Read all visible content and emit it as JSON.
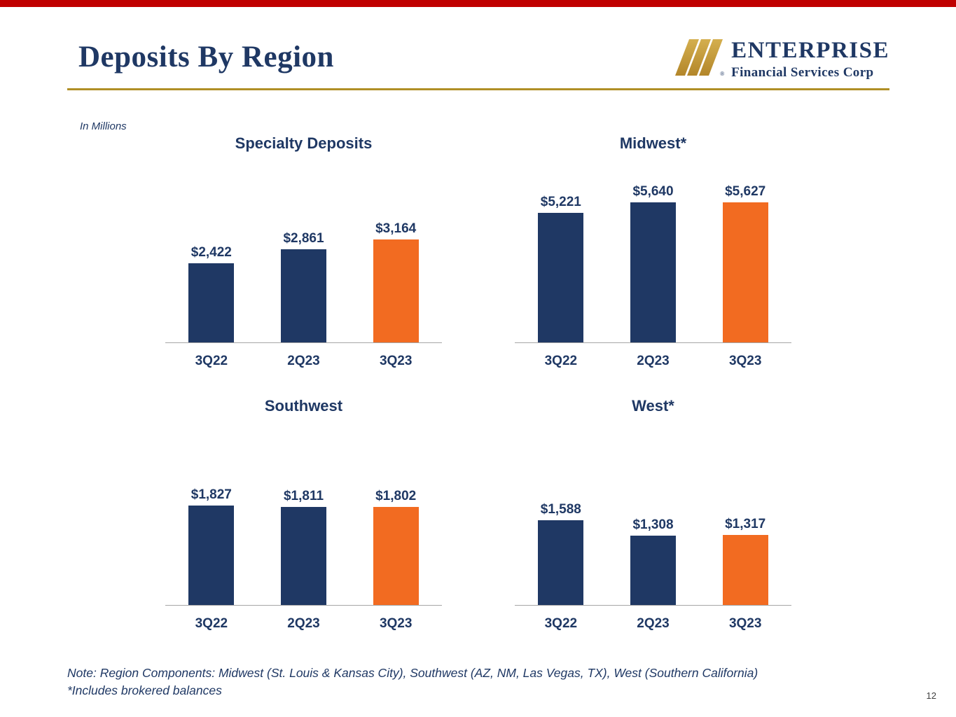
{
  "slide": {
    "title": "Deposits By Region",
    "units_note": "In Millions",
    "footnote_line1": "Note: Region Components: Midwest (St. Louis & Kansas City), Southwest (AZ, NM, Las Vegas, TX), West (Southern California)",
    "footnote_line2": "*Includes brokered balances",
    "page_number": "12"
  },
  "logo": {
    "company": "ENTERPRISE",
    "tagline": "Financial Services Corp",
    "registered_mark": "®"
  },
  "colors": {
    "navy": "#1F3864",
    "orange": "#F26B21",
    "gold_rule": "#B08F26",
    "logo_gold": "#C49A3A",
    "top_strip_red": "#C00000",
    "axis_gray": "#A6A6A6"
  },
  "chart_data": [
    {
      "type": "bar",
      "title": "Specialty Deposits",
      "categories": [
        "3Q22",
        "2Q23",
        "3Q23"
      ],
      "values": [
        2422,
        2861,
        3164
      ],
      "labels": [
        "$2,422",
        "$2,861",
        "$3,164"
      ],
      "bar_colors": [
        "#1F3864",
        "#1F3864",
        "#F26B21"
      ],
      "ylim": [
        0,
        3500
      ],
      "unit": "USD millions",
      "legend": "none",
      "grid": false,
      "y_axis": "hidden"
    },
    {
      "type": "bar",
      "title": "Midwest*",
      "categories": [
        "3Q22",
        "2Q23",
        "3Q23"
      ],
      "values": [
        5221,
        5640,
        5627
      ],
      "labels": [
        "$5,221",
        "$5,640",
        "$5,627"
      ],
      "bar_colors": [
        "#1F3864",
        "#1F3864",
        "#F26B21"
      ],
      "ylim": [
        0,
        6000
      ],
      "unit": "USD millions",
      "legend": "none",
      "grid": false,
      "y_axis": "hidden"
    },
    {
      "type": "bar",
      "title": "Southwest",
      "categories": [
        "3Q22",
        "2Q23",
        "3Q23"
      ],
      "values": [
        1827,
        1811,
        1802
      ],
      "labels": [
        "$1,827",
        "$1,811",
        "$1,802"
      ],
      "bar_colors": [
        "#1F3864",
        "#1F3864",
        "#F26B21"
      ],
      "ylim": [
        0,
        2000
      ],
      "unit": "USD millions",
      "legend": "none",
      "grid": false,
      "y_axis": "hidden"
    },
    {
      "type": "bar",
      "title": "West*",
      "categories": [
        "3Q22",
        "2Q23",
        "3Q23"
      ],
      "values": [
        1588,
        1308,
        1317
      ],
      "labels": [
        "$1,588",
        "$1,308",
        "$1,317"
      ],
      "bar_colors": [
        "#1F3864",
        "#1F3864",
        "#F26B21"
      ],
      "ylim": [
        0,
        2000
      ],
      "unit": "USD millions",
      "legend": "none",
      "grid": false,
      "y_axis": "hidden"
    }
  ]
}
